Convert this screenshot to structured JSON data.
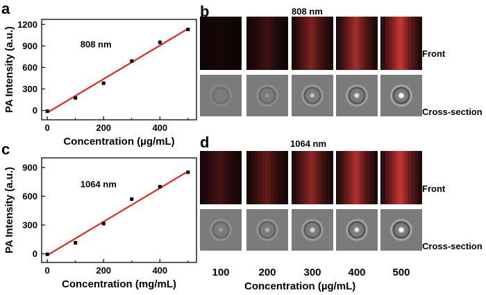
{
  "panels": {
    "a": {
      "letter": "a"
    },
    "b": {
      "letter": "b"
    },
    "c": {
      "letter": "c"
    },
    "d": {
      "letter": "d"
    }
  },
  "chart_data": [
    {
      "id": "a",
      "type": "scatter",
      "annotation": "808 nm",
      "xlabel": "Concentration (µg/mL)",
      "ylabel": "PA Intensity (a.u.)",
      "xlim": [
        -20,
        530
      ],
      "ylim": [
        -130,
        1270
      ],
      "xticks": [
        0,
        200,
        400
      ],
      "xticks_minor": [
        100,
        300,
        500
      ],
      "yticks": [
        0,
        300,
        600,
        900,
        1200
      ],
      "x": [
        0,
        100,
        200,
        300,
        400,
        500
      ],
      "y": [
        -10,
        175,
        380,
        690,
        950,
        1130
      ],
      "fit": {
        "x": [
          0,
          500
        ],
        "y": [
          -30,
          1140
        ],
        "color": "#e8241c"
      },
      "point_color": "#000000",
      "grid": false
    },
    {
      "id": "c",
      "type": "scatter",
      "annotation": "1064 nm",
      "xlabel": "Concentration (mg/mL)",
      "ylabel": "PA Intensity (a.u.)",
      "xlim": [
        -20,
        530
      ],
      "ylim": [
        -90,
        1000
      ],
      "xticks": [
        0,
        200,
        400
      ],
      "xticks_minor": [
        100,
        300,
        500
      ],
      "yticks": [
        0,
        300,
        600,
        900
      ],
      "x": [
        0,
        100,
        200,
        300,
        400,
        500
      ],
      "y": [
        -5,
        115,
        315,
        570,
        700,
        850
      ],
      "fit": {
        "x": [
          0,
          500
        ],
        "y": [
          -15,
          860
        ],
        "color": "#e8241c"
      },
      "point_color": "#000000",
      "grid": false
    }
  ],
  "images": {
    "b": {
      "wavelength": "808 nm",
      "row_labels": [
        "Front",
        "Cross-section"
      ],
      "intensity": [
        0.05,
        0.25,
        0.6,
        0.8,
        1.0
      ]
    },
    "d": {
      "wavelength": "1064 nm",
      "row_labels": [
        "Front",
        "Cross-section"
      ],
      "intensity": [
        0.3,
        0.45,
        0.7,
        0.85,
        1.0
      ]
    },
    "concentrations": [
      "100",
      "200",
      "300",
      "400",
      "500"
    ],
    "x_title": "Concentration (µg/mL)",
    "colors": {
      "front_dark": "#0c0405",
      "front_red": "#d23a36",
      "cross_bg": "#7b7b7b"
    }
  }
}
